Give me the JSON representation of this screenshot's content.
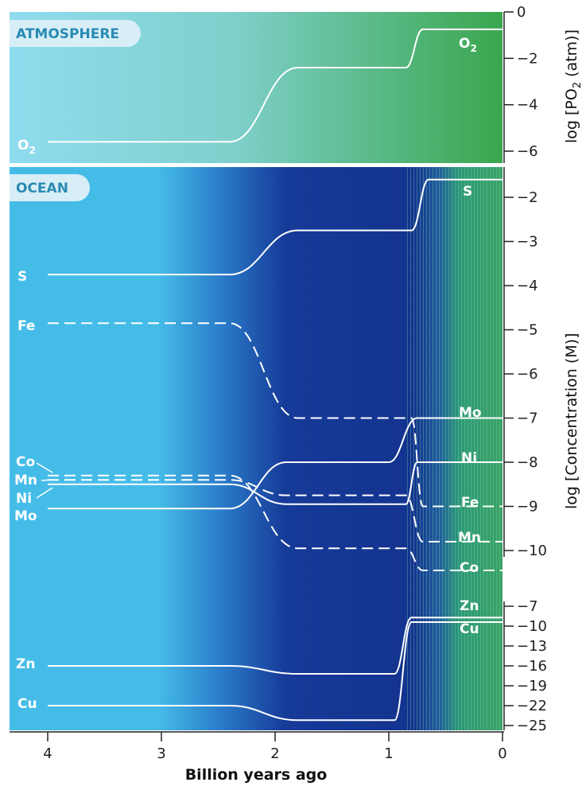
{
  "chart_data": [
    {
      "type": "line",
      "panel_label": "ATMOSPHERE",
      "ylabel": "log [PO2 (atm)]",
      "ylim": [
        -6.6,
        0
      ],
      "yticks": [
        0,
        -2,
        -4,
        -6
      ],
      "x_reversed": true,
      "series": [
        {
          "name": "O2",
          "dashed": false,
          "points": [
            [
              4.0,
              -5.6
            ],
            [
              2.4,
              -5.6
            ],
            [
              1.8,
              -2.4
            ],
            [
              0.85,
              -2.4
            ],
            [
              0.7,
              -0.75
            ],
            [
              0.0,
              -0.75
            ]
          ]
        }
      ]
    },
    {
      "type": "line",
      "panel_label": "OCEAN",
      "ylabel": "log [Concentration (M)]",
      "ylim": [
        -10.5,
        -1.3
      ],
      "yticks": [
        -2,
        -3,
        -4,
        -5,
        -6,
        -7,
        -8,
        -9,
        -10
      ],
      "x_reversed": true,
      "series": [
        {
          "name": "S",
          "dashed": false,
          "points": [
            [
              4.0,
              -3.75
            ],
            [
              2.4,
              -3.75
            ],
            [
              1.8,
              -2.75
            ],
            [
              0.8,
              -2.75
            ],
            [
              0.65,
              -1.6
            ],
            [
              0.0,
              -1.6
            ]
          ]
        },
        {
          "name": "Fe",
          "dashed": true,
          "points": [
            [
              4.0,
              -4.85
            ],
            [
              2.4,
              -4.85
            ],
            [
              1.8,
              -7.0
            ],
            [
              0.8,
              -7.0
            ],
            [
              0.7,
              -9.0
            ],
            [
              0.0,
              -9.0
            ]
          ]
        },
        {
          "name": "Co",
          "dashed": true,
          "points": [
            [
              4.0,
              -8.3
            ],
            [
              2.4,
              -8.3
            ],
            [
              1.8,
              -9.95
            ],
            [
              0.85,
              -9.95
            ],
            [
              0.7,
              -10.45
            ],
            [
              0.0,
              -10.45
            ]
          ]
        },
        {
          "name": "Mn",
          "dashed": true,
          "points": [
            [
              4.0,
              -8.4
            ],
            [
              2.4,
              -8.4
            ],
            [
              1.9,
              -8.75
            ],
            [
              0.85,
              -8.75
            ],
            [
              0.7,
              -9.8
            ],
            [
              0.0,
              -9.8
            ]
          ]
        },
        {
          "name": "Ni",
          "dashed": false,
          "points": [
            [
              4.0,
              -8.5
            ],
            [
              2.4,
              -8.5
            ],
            [
              1.9,
              -8.95
            ],
            [
              0.85,
              -8.95
            ],
            [
              0.75,
              -8.0
            ],
            [
              0.0,
              -8.0
            ]
          ]
        },
        {
          "name": "Mo",
          "dashed": false,
          "points": [
            [
              4.0,
              -9.05
            ],
            [
              2.4,
              -9.05
            ],
            [
              1.9,
              -8.0
            ],
            [
              1.0,
              -8.0
            ],
            [
              0.75,
              -7.0
            ],
            [
              0.0,
              -7.0
            ]
          ]
        }
      ]
    },
    {
      "type": "line",
      "panel_label": "",
      "ylabel": "",
      "ylim": [
        -25,
        -7
      ],
      "yticks": [
        -7,
        -10,
        -13,
        -16,
        -19,
        -22,
        -25
      ],
      "x_reversed": true,
      "series": [
        {
          "name": "Zn",
          "dashed": false,
          "points": [
            [
              4.0,
              -16.0
            ],
            [
              2.4,
              -16.0
            ],
            [
              1.8,
              -17.2
            ],
            [
              0.95,
              -17.2
            ],
            [
              0.8,
              -8.7
            ],
            [
              0.0,
              -8.7
            ]
          ]
        },
        {
          "name": "Cu",
          "dashed": false,
          "points": [
            [
              4.0,
              -22.0
            ],
            [
              2.4,
              -22.0
            ],
            [
              1.8,
              -24.2
            ],
            [
              0.95,
              -24.2
            ],
            [
              0.8,
              -9.4
            ],
            [
              0.0,
              -9.4
            ]
          ]
        }
      ]
    }
  ],
  "x_axis": {
    "label": "Billion years ago",
    "ticks": [
      4,
      3,
      2,
      1,
      0
    ],
    "xlim": [
      4.35,
      0
    ]
  },
  "colors": {
    "atm_left": "#8fdcef",
    "atm_right": "#3aa64d",
    "ocean_light": "#45bce8",
    "ocean_dark": "#13338f",
    "ocean_green": "#3aa366",
    "line": "#ffffff",
    "pill_bg": "#d8eef7",
    "pill_text": "#2a8bb3"
  }
}
